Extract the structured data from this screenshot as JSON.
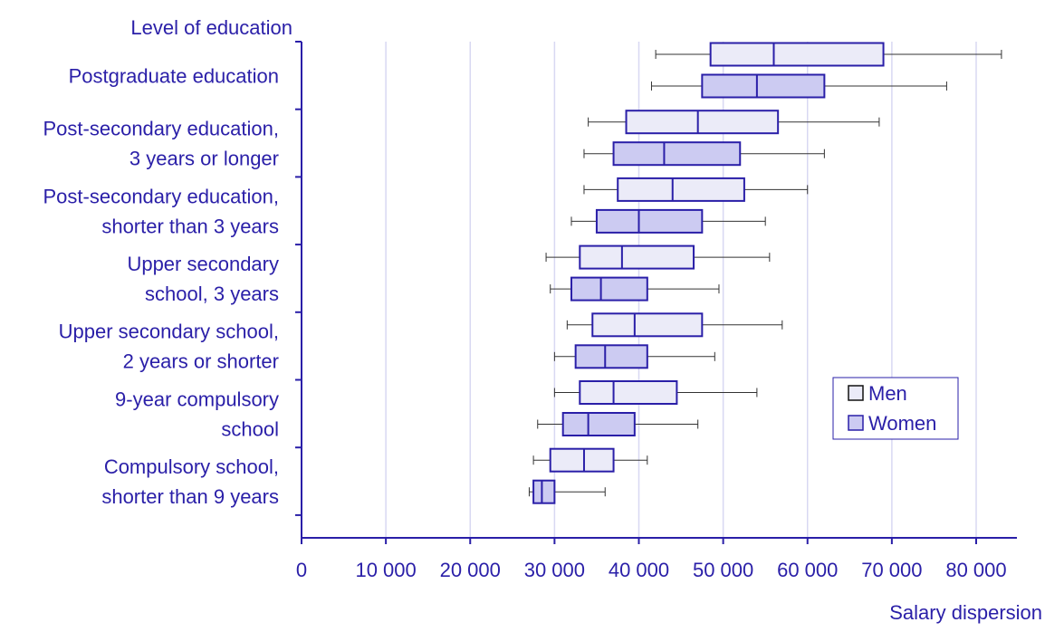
{
  "chart_data": {
    "type": "boxplot",
    "orientation": "horizontal",
    "title": "",
    "ylabel": "Level of education",
    "xlabel": "Salary dispersion",
    "xlim": [
      0,
      85000
    ],
    "xticks": [
      0,
      10000,
      20000,
      30000,
      40000,
      50000,
      60000,
      70000,
      80000
    ],
    "xtick_labels": [
      "0",
      "10 000",
      "20 000",
      "30 000",
      "40 000",
      "50 000",
      "60 000",
      "70 000",
      "80 000"
    ],
    "grid": "vertical",
    "legend_position": "right",
    "categories": [
      [
        "Postgraduate education"
      ],
      [
        "Post-secondary education,",
        "3 years or longer"
      ],
      [
        "Post-secondary education,",
        "shorter than 3 years"
      ],
      [
        "Upper secondary",
        "school, 3 years"
      ],
      [
        "Upper secondary school,",
        "2 years or shorter"
      ],
      [
        "9-year compulsory",
        "school"
      ],
      [
        "Compulsory school,",
        "shorter than 9 years"
      ]
    ],
    "series": [
      {
        "name": "Men",
        "color": "#ebebf8",
        "boxes": [
          {
            "whisker_low": 42000,
            "q1": 48500,
            "median": 56000,
            "q3": 69000,
            "whisker_high": 83000
          },
          {
            "whisker_low": 34000,
            "q1": 38500,
            "median": 47000,
            "q3": 56500,
            "whisker_high": 68500
          },
          {
            "whisker_low": 33500,
            "q1": 37500,
            "median": 44000,
            "q3": 52500,
            "whisker_high": 60000
          },
          {
            "whisker_low": 29000,
            "q1": 33000,
            "median": 38000,
            "q3": 46500,
            "whisker_high": 55500
          },
          {
            "whisker_low": 31500,
            "q1": 34500,
            "median": 39500,
            "q3": 47500,
            "whisker_high": 57000
          },
          {
            "whisker_low": 30000,
            "q1": 33000,
            "median": 37000,
            "q3": 44500,
            "whisker_high": 54000
          },
          {
            "whisker_low": 27500,
            "q1": 29500,
            "median": 33500,
            "q3": 37000,
            "whisker_high": 41000
          }
        ]
      },
      {
        "name": "Women",
        "color": "#cccbf2",
        "boxes": [
          {
            "whisker_low": 41500,
            "q1": 47500,
            "median": 54000,
            "q3": 62000,
            "whisker_high": 76500
          },
          {
            "whisker_low": 33500,
            "q1": 37000,
            "median": 43000,
            "q3": 52000,
            "whisker_high": 62000
          },
          {
            "whisker_low": 32000,
            "q1": 35000,
            "median": 40000,
            "q3": 47500,
            "whisker_high": 55000
          },
          {
            "whisker_low": 29500,
            "q1": 32000,
            "median": 35500,
            "q3": 41000,
            "whisker_high": 49500
          },
          {
            "whisker_low": 30000,
            "q1": 32500,
            "median": 36000,
            "q3": 41000,
            "whisker_high": 49000
          },
          {
            "whisker_low": 28000,
            "q1": 31000,
            "median": 34000,
            "q3": 39500,
            "whisker_high": 47000
          },
          {
            "whisker_low": 27000,
            "q1": 27500,
            "median": 28500,
            "q3": 30000,
            "whisker_high": 36000
          }
        ]
      }
    ],
    "colors": {
      "text": "#2a1fa8",
      "stroke": "#2a1fa8",
      "grid": "#d8d8f2"
    }
  }
}
